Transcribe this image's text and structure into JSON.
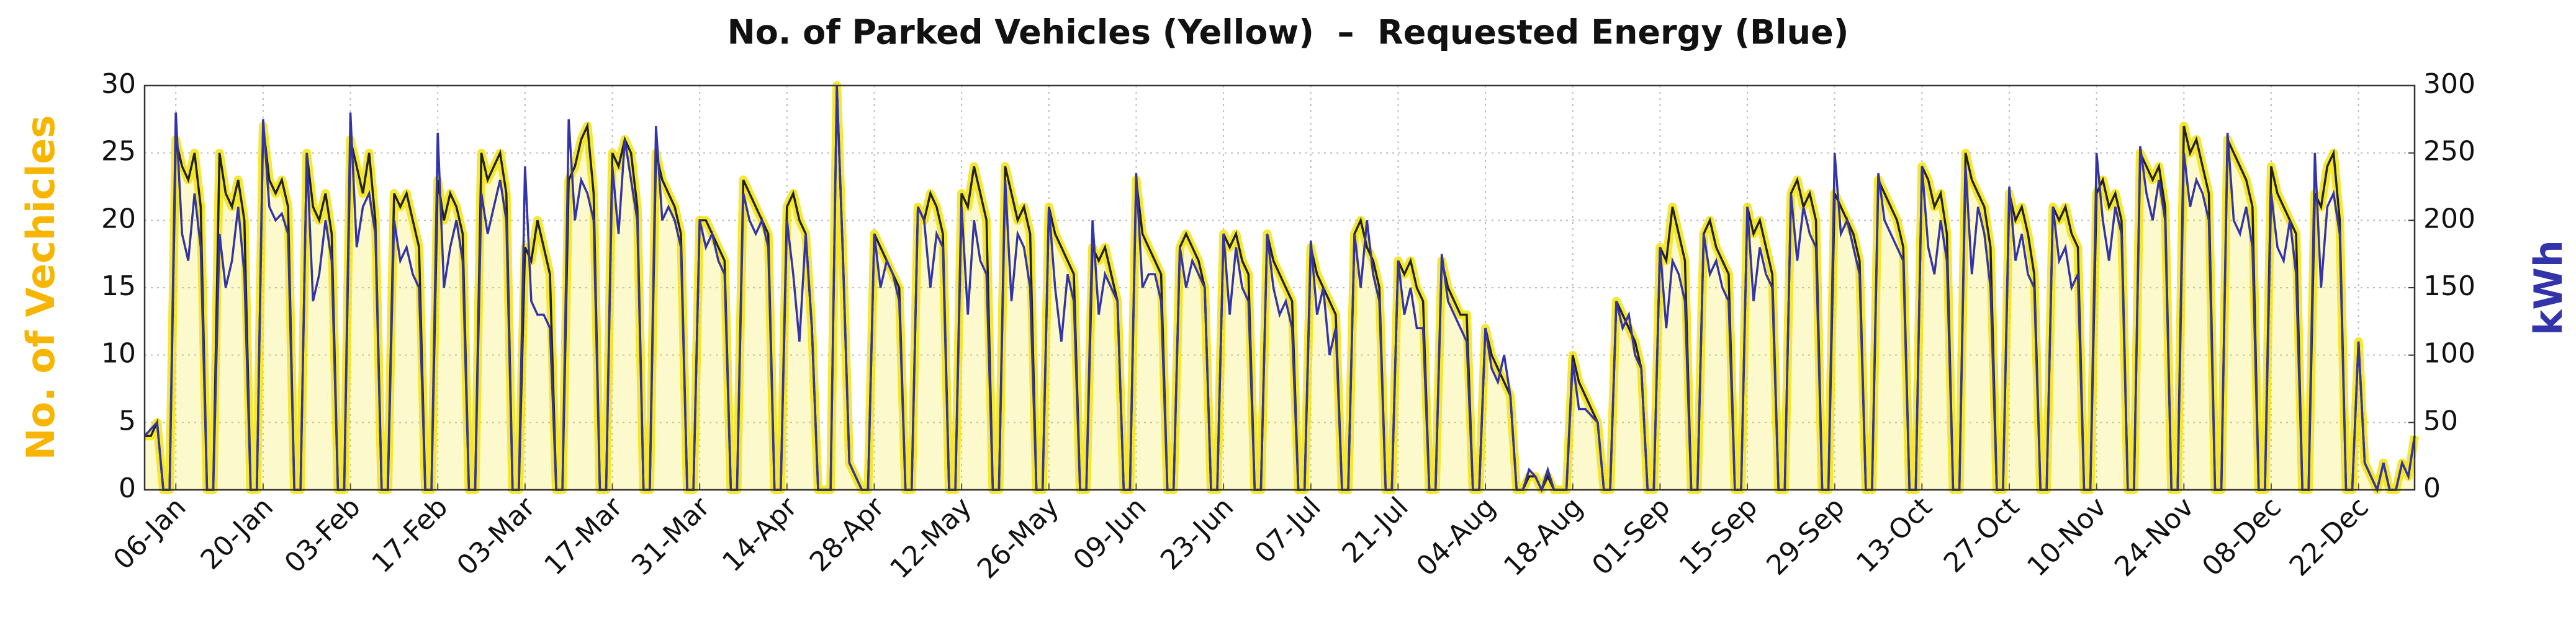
{
  "chart_data": {
    "type": "line",
    "title": "No. of Parked Vehicles (Yellow)  –  Requested Energy (Blue)",
    "y_label": "No. of Vechicles",
    "y2_label": "kWh",
    "grid": true,
    "ylim": [
      0,
      30
    ],
    "yticks": [
      0,
      5,
      10,
      15,
      20,
      25,
      30
    ],
    "y2lim": [
      0,
      300
    ],
    "y2ticks": [
      0,
      50,
      100,
      150,
      200,
      250,
      300
    ],
    "categories": [
      null,
      null,
      null,
      null,
      null,
      "06-Jan",
      null,
      null,
      null,
      null,
      null,
      null,
      null,
      null,
      null,
      null,
      null,
      null,
      null,
      "20-Jan",
      null,
      null,
      null,
      null,
      null,
      null,
      null,
      null,
      null,
      null,
      null,
      null,
      null,
      "03-Feb",
      null,
      null,
      null,
      null,
      null,
      null,
      null,
      null,
      null,
      null,
      null,
      null,
      null,
      "17-Feb",
      null,
      null,
      null,
      null,
      null,
      null,
      null,
      null,
      null,
      null,
      null,
      null,
      null,
      "03-Mar",
      null,
      null,
      null,
      null,
      null,
      null,
      null,
      null,
      null,
      null,
      null,
      null,
      null,
      "17-Mar",
      null,
      null,
      null,
      null,
      null,
      null,
      null,
      null,
      null,
      null,
      null,
      null,
      null,
      "31-Mar",
      null,
      null,
      null,
      null,
      null,
      null,
      null,
      null,
      null,
      null,
      null,
      null,
      null,
      "14-Apr",
      null,
      null,
      null,
      null,
      null,
      null,
      null,
      null,
      null,
      null,
      null,
      null,
      null,
      "28-Apr",
      null,
      null,
      null,
      null,
      null,
      null,
      null,
      null,
      null,
      null,
      null,
      null,
      null,
      "12-May",
      null,
      null,
      null,
      null,
      null,
      null,
      null,
      null,
      null,
      null,
      null,
      null,
      null,
      "26-May",
      null,
      null,
      null,
      null,
      null,
      null,
      null,
      null,
      null,
      null,
      null,
      null,
      null,
      "09-Jun",
      null,
      null,
      null,
      null,
      null,
      null,
      null,
      null,
      null,
      null,
      null,
      null,
      null,
      "23-Jun",
      null,
      null,
      null,
      null,
      null,
      null,
      null,
      null,
      null,
      null,
      null,
      null,
      null,
      "07-Jul",
      null,
      null,
      null,
      null,
      null,
      null,
      null,
      null,
      null,
      null,
      null,
      null,
      null,
      "21-Jul",
      null,
      null,
      null,
      null,
      null,
      null,
      null,
      null,
      null,
      null,
      null,
      null,
      null,
      "04-Aug",
      null,
      null,
      null,
      null,
      null,
      null,
      null,
      null,
      null,
      null,
      null,
      null,
      null,
      "18-Aug",
      null,
      null,
      null,
      null,
      null,
      null,
      null,
      null,
      null,
      null,
      null,
      null,
      null,
      "01-Sep",
      null,
      null,
      null,
      null,
      null,
      null,
      null,
      null,
      null,
      null,
      null,
      null,
      null,
      "15-Sep",
      null,
      null,
      null,
      null,
      null,
      null,
      null,
      null,
      null,
      null,
      null,
      null,
      null,
      "29-Sep",
      null,
      null,
      null,
      null,
      null,
      null,
      null,
      null,
      null,
      null,
      null,
      null,
      null,
      "13-Oct",
      null,
      null,
      null,
      null,
      null,
      null,
      null,
      null,
      null,
      null,
      null,
      null,
      null,
      "27-Oct",
      null,
      null,
      null,
      null,
      null,
      null,
      null,
      null,
      null,
      null,
      null,
      null,
      null,
      "10-Nov",
      null,
      null,
      null,
      null,
      null,
      null,
      null,
      null,
      null,
      null,
      null,
      null,
      null,
      "24-Nov",
      null,
      null,
      null,
      null,
      null,
      null,
      null,
      null,
      null,
      null,
      null,
      null,
      null,
      "08-Dec",
      null,
      null,
      null,
      null,
      null,
      null,
      null,
      null,
      null,
      null,
      null,
      null,
      null,
      "22-Dec",
      null,
      null,
      null,
      null,
      null,
      null,
      null,
      null,
      null
    ],
    "series": [
      {
        "color": "#f2e200",
        "values": [
          4,
          4,
          5,
          0,
          0,
          26,
          24,
          23,
          25,
          21,
          0,
          0,
          25,
          22,
          21,
          23,
          20,
          0,
          0,
          27,
          23,
          22,
          23,
          21,
          0,
          0,
          25,
          21,
          20,
          22,
          19,
          0,
          0,
          26,
          24,
          22,
          25,
          20,
          0,
          0,
          22,
          21,
          22,
          20,
          18,
          0,
          0,
          23,
          20,
          22,
          21,
          19,
          0,
          0,
          25,
          23,
          24,
          25,
          22,
          0,
          0,
          18,
          17,
          20,
          18,
          16,
          0,
          0,
          23,
          24,
          26,
          27,
          22,
          0,
          0,
          25,
          24,
          26,
          25,
          21,
          0,
          0,
          25,
          23,
          22,
          21,
          19,
          0,
          0,
          20,
          20,
          19,
          18,
          17,
          0,
          0,
          23,
          22,
          21,
          20,
          19,
          0,
          0,
          21,
          22,
          20,
          19,
          12,
          0,
          0,
          0,
          30,
          17,
          2,
          1,
          0,
          0,
          19,
          18,
          17,
          16,
          15,
          0,
          0,
          21,
          20,
          22,
          21,
          19,
          0,
          0,
          22,
          21,
          24,
          22,
          20,
          0,
          0,
          24,
          22,
          20,
          21,
          19,
          0,
          0,
          21,
          19,
          18,
          17,
          16,
          0,
          0,
          18,
          17,
          18,
          16,
          14,
          0,
          0,
          23,
          19,
          18,
          17,
          16,
          0,
          0,
          18,
          19,
          18,
          17,
          15,
          0,
          0,
          19,
          18,
          19,
          17,
          16,
          0,
          0,
          19,
          17,
          16,
          15,
          14,
          0,
          0,
          18,
          16,
          15,
          14,
          13,
          0,
          0,
          19,
          20,
          18,
          17,
          15,
          0,
          0,
          17,
          16,
          17,
          15,
          14,
          0,
          0,
          17,
          15,
          14,
          13,
          13,
          0,
          0,
          12,
          10,
          9,
          8,
          7,
          0,
          0,
          1,
          1,
          0,
          1,
          0,
          0,
          0,
          10,
          8,
          7,
          6,
          5,
          0,
          0,
          14,
          13,
          12,
          11,
          9,
          0,
          0,
          18,
          17,
          21,
          19,
          17,
          0,
          0,
          19,
          20,
          18,
          17,
          16,
          0,
          0,
          21,
          19,
          20,
          18,
          16,
          0,
          0,
          22,
          23,
          21,
          22,
          20,
          0,
          0,
          22,
          21,
          20,
          19,
          17,
          0,
          0,
          23,
          22,
          21,
          20,
          18,
          0,
          0,
          24,
          23,
          21,
          22,
          19,
          0,
          0,
          25,
          23,
          22,
          21,
          18,
          0,
          0,
          22,
          20,
          21,
          19,
          16,
          0,
          0,
          21,
          20,
          21,
          19,
          18,
          0,
          0,
          22,
          23,
          21,
          22,
          20,
          0,
          0,
          25,
          24,
          23,
          24,
          21,
          0,
          0,
          27,
          25,
          26,
          24,
          22,
          0,
          0,
          26,
          25,
          24,
          23,
          21,
          0,
          0,
          24,
          22,
          21,
          20,
          19,
          0,
          0,
          22,
          21,
          24,
          25,
          20,
          0,
          0,
          11,
          2,
          1,
          0,
          2,
          0,
          0,
          2,
          1,
          4
        ]
      },
      {
        "color": "#3333aa",
        "axis": "y2",
        "values": [
          40,
          45,
          50,
          0,
          0,
          280,
          190,
          170,
          220,
          180,
          0,
          0,
          190,
          150,
          170,
          210,
          160,
          0,
          0,
          275,
          210,
          200,
          205,
          190,
          0,
          0,
          250,
          140,
          160,
          200,
          170,
          0,
          0,
          280,
          180,
          210,
          220,
          190,
          0,
          0,
          200,
          170,
          180,
          160,
          150,
          0,
          0,
          265,
          150,
          180,
          200,
          170,
          0,
          0,
          220,
          190,
          210,
          230,
          200,
          0,
          0,
          240,
          140,
          130,
          130,
          120,
          0,
          0,
          275,
          200,
          230,
          220,
          200,
          0,
          0,
          240,
          190,
          260,
          230,
          200,
          0,
          0,
          270,
          200,
          210,
          200,
          180,
          0,
          0,
          200,
          180,
          190,
          170,
          160,
          0,
          0,
          220,
          200,
          190,
          200,
          180,
          0,
          0,
          200,
          160,
          110,
          190,
          120,
          0,
          0,
          0,
          300,
          170,
          20,
          10,
          0,
          0,
          190,
          150,
          170,
          160,
          140,
          0,
          0,
          210,
          200,
          150,
          190,
          180,
          0,
          0,
          210,
          130,
          200,
          170,
          160,
          0,
          0,
          230,
          140,
          190,
          180,
          150,
          0,
          0,
          210,
          150,
          110,
          160,
          140,
          0,
          0,
          200,
          130,
          160,
          150,
          140,
          0,
          0,
          235,
          150,
          160,
          160,
          140,
          0,
          0,
          180,
          150,
          170,
          160,
          150,
          0,
          0,
          190,
          130,
          180,
          150,
          140,
          0,
          0,
          190,
          150,
          130,
          140,
          120,
          0,
          0,
          185,
          130,
          150,
          100,
          120,
          0,
          0,
          190,
          150,
          200,
          160,
          140,
          0,
          0,
          170,
          130,
          150,
          120,
          120,
          0,
          0,
          175,
          140,
          130,
          120,
          110,
          0,
          0,
          120,
          90,
          80,
          100,
          70,
          0,
          0,
          15,
          10,
          0,
          15,
          0,
          0,
          0,
          95,
          60,
          60,
          55,
          50,
          0,
          0,
          140,
          120,
          130,
          100,
          90,
          0,
          0,
          180,
          120,
          170,
          160,
          140,
          0,
          0,
          190,
          160,
          170,
          150,
          140,
          0,
          0,
          210,
          140,
          180,
          160,
          150,
          0,
          0,
          220,
          170,
          210,
          190,
          180,
          0,
          0,
          250,
          190,
          200,
          180,
          160,
          0,
          0,
          235,
          200,
          190,
          180,
          170,
          0,
          0,
          240,
          180,
          160,
          200,
          170,
          0,
          0,
          240,
          160,
          210,
          190,
          150,
          0,
          0,
          225,
          170,
          190,
          160,
          150,
          0,
          0,
          210,
          170,
          180,
          150,
          160,
          0,
          0,
          250,
          200,
          170,
          210,
          190,
          0,
          0,
          255,
          220,
          200,
          230,
          200,
          0,
          0,
          250,
          210,
          230,
          220,
          200,
          0,
          0,
          265,
          200,
          190,
          210,
          180,
          0,
          0,
          220,
          180,
          170,
          200,
          160,
          0,
          0,
          250,
          150,
          210,
          220,
          190,
          0,
          0,
          110,
          20,
          10,
          0,
          20,
          0,
          0,
          20,
          10,
          40
        ]
      }
    ]
  }
}
